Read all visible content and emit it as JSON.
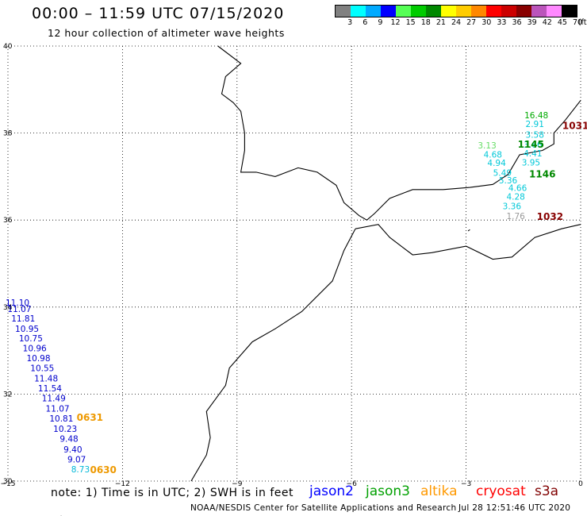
{
  "title": "00:00 – 11:59 UTC 07/15/2020",
  "subtitle": "12 hour collection of altimeter wave heights",
  "legend": {
    "colors": [
      "#808080",
      "#00ffff",
      "#00aaff",
      "#0000ff",
      "#55ff55",
      "#00cc00",
      "#008800",
      "#ffff00",
      "#ffcc00",
      "#ff8800",
      "#ff0000",
      "#cc0000",
      "#880000",
      "#bb55bb",
      "#ff88ff",
      "#000000"
    ],
    "labels": [
      "3",
      "6",
      "9",
      "12",
      "15",
      "18",
      "21",
      "24",
      "27",
      "30",
      "33",
      "36",
      "39",
      "42",
      "45",
      "70",
      "(ft)"
    ]
  },
  "map": {
    "lon_min": -15,
    "lon_max": 0,
    "lat_min": 30,
    "lat_max": 40,
    "lon_ticks": [
      -15,
      -12,
      -9,
      -6,
      -3,
      0
    ],
    "lon_tick_labels": [
      "−15",
      "−12",
      "−9",
      "−6",
      "−3",
      "0"
    ],
    "lat_ticks": [
      40,
      38,
      36,
      34,
      32,
      30
    ],
    "lat_tick_labels": [
      "40",
      "38",
      "36",
      "34",
      "32",
      "30"
    ]
  },
  "observations": [
    {
      "text": "11.10",
      "lon": -14.75,
      "lat": 34.03,
      "color": "#0000cc"
    },
    {
      "text": "11.07",
      "lon": -14.7,
      "lat": 33.89,
      "color": "#0000cc"
    },
    {
      "text": "11.81",
      "lon": -14.6,
      "lat": 33.67,
      "color": "#0000cc"
    },
    {
      "text": "10.95",
      "lon": -14.5,
      "lat": 33.43,
      "color": "#0000cc"
    },
    {
      "text": "10.75",
      "lon": -14.4,
      "lat": 33.21,
      "color": "#0000cc"
    },
    {
      "text": "10.96",
      "lon": -14.3,
      "lat": 32.98,
      "color": "#0000cc"
    },
    {
      "text": "10.98",
      "lon": -14.2,
      "lat": 32.76,
      "color": "#0000cc"
    },
    {
      "text": "10.55",
      "lon": -14.1,
      "lat": 32.53,
      "color": "#0000cc"
    },
    {
      "text": "11.48",
      "lon": -14.0,
      "lat": 32.29,
      "color": "#0000cc"
    },
    {
      "text": "11.54",
      "lon": -13.9,
      "lat": 32.06,
      "color": "#0000cc"
    },
    {
      "text": "11.49",
      "lon": -13.8,
      "lat": 31.83,
      "color": "#0000cc"
    },
    {
      "text": "11.07",
      "lon": -13.7,
      "lat": 31.6,
      "color": "#0000cc"
    },
    {
      "text": "10.81",
      "lon": -13.6,
      "lat": 31.37,
      "color": "#0000cc"
    },
    {
      "text": "10.23",
      "lon": -13.5,
      "lat": 31.13,
      "color": "#0000cc"
    },
    {
      "text": "9.48",
      "lon": -13.4,
      "lat": 30.9,
      "color": "#0000cc"
    },
    {
      "text": "9.40",
      "lon": -13.3,
      "lat": 30.66,
      "color": "#0000cc"
    },
    {
      "text": "9.07",
      "lon": -13.2,
      "lat": 30.43,
      "color": "#0000cc"
    },
    {
      "text": "8.73",
      "lon": -13.1,
      "lat": 30.2,
      "color": "#00b8d8"
    },
    {
      "text": "16.48",
      "lon": -1.16,
      "lat": 38.34,
      "color": "#00aa00"
    },
    {
      "text": "2.91",
      "lon": -1.2,
      "lat": 38.14,
      "color": "#00c8d8"
    },
    {
      "text": "3.58",
      "lon": -1.2,
      "lat": 37.89,
      "color": "#00c8d8"
    },
    {
      "text": "3.66",
      "lon": -1.25,
      "lat": 37.66,
      "color": "#00c8d8"
    },
    {
      "text": "4.41",
      "lon": -1.25,
      "lat": 37.46,
      "color": "#00c8d8"
    },
    {
      "text": "3.95",
      "lon": -1.3,
      "lat": 37.25,
      "color": "#00c8d8"
    },
    {
      "text": "3.13",
      "lon": -2.45,
      "lat": 37.65,
      "color": "#66dd66"
    },
    {
      "text": "4.68",
      "lon": -2.3,
      "lat": 37.44,
      "color": "#00c8d8"
    },
    {
      "text": "4.94",
      "lon": -2.2,
      "lat": 37.24,
      "color": "#00c8d8"
    },
    {
      "text": "5.49",
      "lon": -2.05,
      "lat": 37.02,
      "color": "#00c8d8"
    },
    {
      "text": "5.36",
      "lon": -1.9,
      "lat": 36.84,
      "color": "#00c8d8"
    },
    {
      "text": "4.66",
      "lon": -1.65,
      "lat": 36.67,
      "color": "#00c8d8"
    },
    {
      "text": "4.28",
      "lon": -1.7,
      "lat": 36.47,
      "color": "#00c8d8"
    },
    {
      "text": "3.36",
      "lon": -1.8,
      "lat": 36.25,
      "color": "#00c8d8"
    },
    {
      "text": "1.76",
      "lon": -1.7,
      "lat": 36.02,
      "color": "#999999"
    }
  ],
  "time_labels": [
    {
      "text": "1031",
      "lon": -0.48,
      "lat": 38.09,
      "color": "#880000"
    },
    {
      "text": "1145",
      "lon": -1.65,
      "lat": 37.66,
      "color": "#008800"
    },
    {
      "text": "1146",
      "lon": -1.35,
      "lat": 36.98,
      "color": "#008800"
    },
    {
      "text": "1032",
      "lon": -1.15,
      "lat": 36.0,
      "color": "#880000"
    },
    {
      "text": "0631",
      "lon": -13.2,
      "lat": 31.39,
      "color": "#ee9900"
    },
    {
      "text": "0630",
      "lon": -12.85,
      "lat": 30.18,
      "color": "#ee9900"
    }
  ],
  "note": "note: 1) Time is in UTC; 2) SWH is in feet",
  "satellites": [
    {
      "name": "jason2",
      "color": "#0000ff"
    },
    {
      "name": "jason3",
      "color": "#00a000"
    },
    {
      "name": "altika",
      "color": "#ff9900"
    },
    {
      "name": "cryosat",
      "color": "#ff0000"
    },
    {
      "name": "s3a",
      "color": "#800000"
    }
  ],
  "footer": "NOAA/NESDIS Center for Satellite Applications and Research",
  "timestamp": "Jul 28 12:51:46 UTC 2020"
}
